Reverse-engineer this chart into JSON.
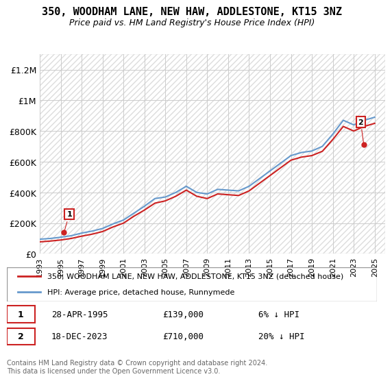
{
  "title": "350, WOODHAM LANE, NEW HAW, ADDLESTONE, KT15 3NZ",
  "subtitle": "Price paid vs. HM Land Registry's House Price Index (HPI)",
  "ylabel_ticks": [
    "£0",
    "£200K",
    "£400K",
    "£600K",
    "£800K",
    "£1M",
    "£1.2M"
  ],
  "ytick_vals": [
    0,
    200000,
    400000,
    600000,
    800000,
    1000000,
    1200000
  ],
  "ylim": [
    0,
    1300000
  ],
  "xlim_start": 1993,
  "xlim_end": 2026,
  "hpi_color": "#6699cc",
  "price_color": "#cc2222",
  "annotation_box_color": "#cc2222",
  "background_hatch_color": "#e8e8e8",
  "legend_label_price": "350, WOODHAM LANE, NEW HAW, ADDLESTONE, KT15 3NZ (detached house)",
  "legend_label_hpi": "HPI: Average price, detached house, Runnymede",
  "point1_label": "1",
  "point1_date": "28-APR-1995",
  "point1_price": "£139,000",
  "point1_hpi": "6% ↓ HPI",
  "point1_x": 1995.32,
  "point1_y": 139000,
  "point2_label": "2",
  "point2_date": "18-DEC-2023",
  "point2_price": "£710,000",
  "point2_hpi": "20% ↓ HPI",
  "point2_x": 2023.96,
  "point2_y": 710000,
  "copyright_text": "Contains HM Land Registry data © Crown copyright and database right 2024.\nThis data is licensed under the Open Government Licence v3.0.",
  "hpi_x": [
    1993,
    1994,
    1995,
    1996,
    1997,
    1998,
    1999,
    2000,
    2001,
    2002,
    2003,
    2004,
    2005,
    2006,
    2007,
    2008,
    2009,
    2010,
    2011,
    2012,
    2013,
    2014,
    2015,
    2016,
    2017,
    2018,
    2019,
    2020,
    2021,
    2022,
    2023,
    2024,
    2025
  ],
  "hpi_y": [
    95000,
    100000,
    108000,
    118000,
    135000,
    148000,
    165000,
    195000,
    220000,
    265000,
    310000,
    360000,
    370000,
    400000,
    440000,
    400000,
    390000,
    420000,
    415000,
    410000,
    440000,
    490000,
    540000,
    590000,
    640000,
    660000,
    670000,
    700000,
    780000,
    870000,
    840000,
    870000,
    890000
  ],
  "price_x": [
    1993,
    1994,
    1995,
    1996,
    1997,
    1998,
    1999,
    2000,
    2001,
    2002,
    2003,
    2004,
    2005,
    2006,
    2007,
    2008,
    2009,
    2010,
    2011,
    2012,
    2013,
    2014,
    2015,
    2016,
    2017,
    2018,
    2019,
    2020,
    2021,
    2022,
    2023,
    2024,
    2025
  ],
  "price_y": [
    78000,
    83000,
    90000,
    100000,
    115000,
    128000,
    145000,
    175000,
    200000,
    245000,
    285000,
    330000,
    345000,
    375000,
    415000,
    375000,
    360000,
    390000,
    385000,
    380000,
    410000,
    460000,
    510000,
    560000,
    610000,
    630000,
    640000,
    668000,
    745000,
    830000,
    800000,
    830000,
    850000
  ],
  "xticks": [
    1993,
    1995,
    1997,
    1999,
    2001,
    2003,
    2005,
    2007,
    2009,
    2011,
    2013,
    2015,
    2017,
    2019,
    2021,
    2023,
    2025
  ]
}
